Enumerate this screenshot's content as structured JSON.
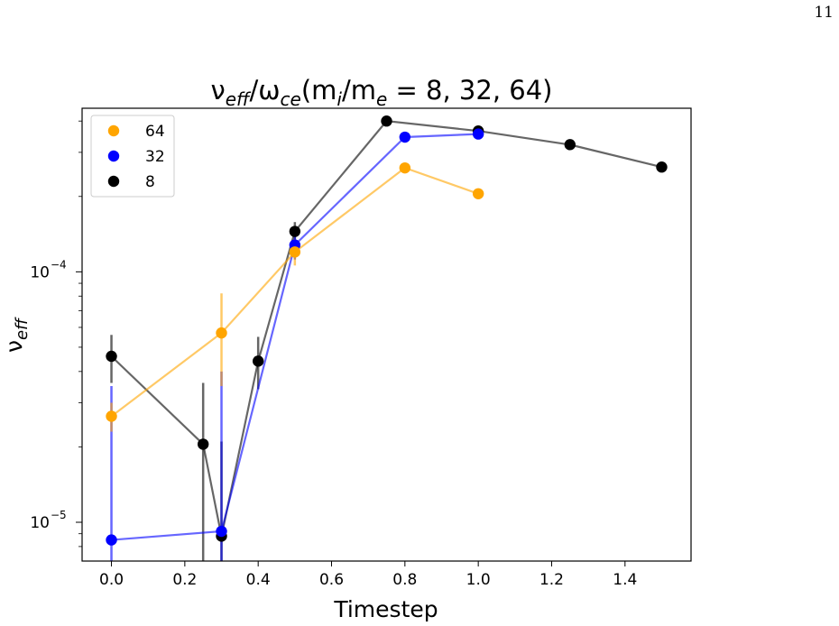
{
  "page": {
    "number": "11"
  },
  "chart_data": {
    "type": "line",
    "title": {
      "prefix": "ν",
      "sub1": "eff",
      "mid": "/ω",
      "sub2": "ce",
      "open": "(m",
      "sub3": "i",
      "slash": "/m",
      "sub4": "e",
      "rest": " = 8, 32, 64)"
    },
    "xlabel": "Timestep",
    "ylabel": {
      "main": "ν",
      "sub": "eff"
    },
    "x_scale": "linear",
    "y_scale": "log",
    "xlim": [
      -0.08,
      1.58
    ],
    "ylim": [
      7e-06,
      0.00045
    ],
    "x_ticks": [
      {
        "value": 0.0,
        "label": "0.0"
      },
      {
        "value": 0.2,
        "label": "0.2"
      },
      {
        "value": 0.4,
        "label": "0.4"
      },
      {
        "value": 0.6,
        "label": "0.6"
      },
      {
        "value": 0.8,
        "label": "0.8"
      },
      {
        "value": 1.0,
        "label": "1.0"
      },
      {
        "value": 1.2,
        "label": "1.2"
      },
      {
        "value": 1.4,
        "label": "1.4"
      }
    ],
    "y_major_ticks": [
      {
        "value": 1e-05,
        "base": "10",
        "exp": "−5"
      },
      {
        "value": 0.0001,
        "base": "10",
        "exp": "−4"
      }
    ],
    "grid": false,
    "legend": {
      "placement": "top-left"
    },
    "series": [
      {
        "name": "64",
        "color": "#ffa500",
        "x": [
          0.0,
          0.3,
          0.5,
          0.8,
          1.0
        ],
        "y": [
          2.65e-05,
          5.7e-05,
          0.00012,
          0.00026,
          0.000205
        ],
        "err_low": [
          2.3e-05,
          3.5e-05,
          0.000106,
          null,
          null
        ],
        "err_high": [
          3e-05,
          8.2e-05,
          0.000135,
          null,
          null
        ]
      },
      {
        "name": "32",
        "color": "#0000ff",
        "x": [
          0.0,
          0.3,
          0.5,
          0.8,
          1.0
        ],
        "y": [
          8.5e-06,
          9.2e-06,
          0.000128,
          0.000345,
          0.000355
        ],
        "err_low": [
          7e-06,
          7e-06,
          0.000112,
          null,
          null
        ],
        "err_high": [
          3.5e-05,
          4e-05,
          0.000145,
          null,
          null
        ]
      },
      {
        "name": "8",
        "color": "#000000",
        "x": [
          0.0,
          0.25,
          0.3,
          0.4,
          0.5,
          0.75,
          1.0,
          1.25,
          1.5
        ],
        "y": [
          4.6e-05,
          2.05e-05,
          8.8e-06,
          4.4e-05,
          0.000145,
          0.0004,
          0.000365,
          0.000322,
          0.000262
        ],
        "err_low": [
          3.6e-05,
          7e-06,
          7e-06,
          3.4e-05,
          0.000133,
          null,
          null,
          null,
          null
        ],
        "err_high": [
          5.6e-05,
          3.6e-05,
          2.1e-05,
          5.5e-05,
          0.000158,
          null,
          null,
          null,
          null
        ]
      }
    ]
  }
}
